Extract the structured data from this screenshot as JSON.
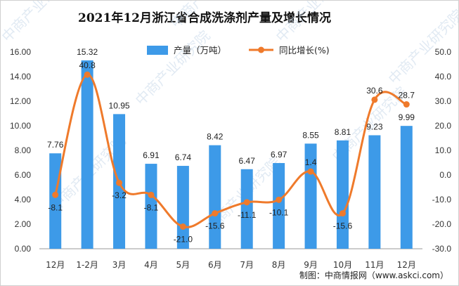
{
  "chart_data": {
    "type": "bar",
    "title": "2021年12月浙江省合成洗涤剂产量及增长情况",
    "categories": [
      "12月",
      "1-2月",
      "3月",
      "4月",
      "5月",
      "6月",
      "7月",
      "8月",
      "9月",
      "10月",
      "11月",
      "12月"
    ],
    "series": [
      {
        "name": "产量（万吨）",
        "type": "bar",
        "axis": "left",
        "values": [
          7.76,
          15.32,
          10.95,
          6.91,
          6.74,
          8.42,
          6.47,
          6.97,
          8.55,
          8.81,
          9.23,
          9.99
        ],
        "labels": [
          "7.76",
          "15.32",
          "10.95",
          "6.91",
          "6.74",
          "8.42",
          "6.47",
          "6.97",
          "8.55",
          "8.81",
          "9.23",
          "9.99"
        ]
      },
      {
        "name": "同比增长(%)",
        "type": "line",
        "axis": "right",
        "values": [
          -8.1,
          40.8,
          -3.2,
          -8.1,
          -21.0,
          -15.6,
          -11.1,
          -10.1,
          1.4,
          -15.6,
          30.6,
          28.7
        ],
        "labels": [
          "-8.1",
          "40.8",
          "-3.2",
          "-8.1",
          "-21.0",
          "-15.6",
          "-11.1",
          "-10.1",
          "1.4",
          "-15.6",
          "30.6",
          "28.7"
        ]
      }
    ],
    "y_left": {
      "ylim": [
        0,
        16
      ],
      "ticks": [
        "0.00",
        "2.00",
        "4.00",
        "6.00",
        "8.00",
        "10.00",
        "12.00",
        "14.00",
        "16.00"
      ]
    },
    "y_right": {
      "ylim": [
        -30,
        50
      ],
      "ticks": [
        "-30.0",
        "-20.0",
        "-10.0",
        "0.0",
        "10.0",
        "20.0",
        "30.0",
        "40.0",
        "50.0"
      ]
    },
    "grid": false,
    "legend_position": "top",
    "colors": {
      "bar": "#3d9ae8",
      "line": "#ef7a2b",
      "marker": "#ef7a2b"
    }
  },
  "source": "制图：中商情报网（www.askci.com）",
  "watermark": "中商产业研究院"
}
